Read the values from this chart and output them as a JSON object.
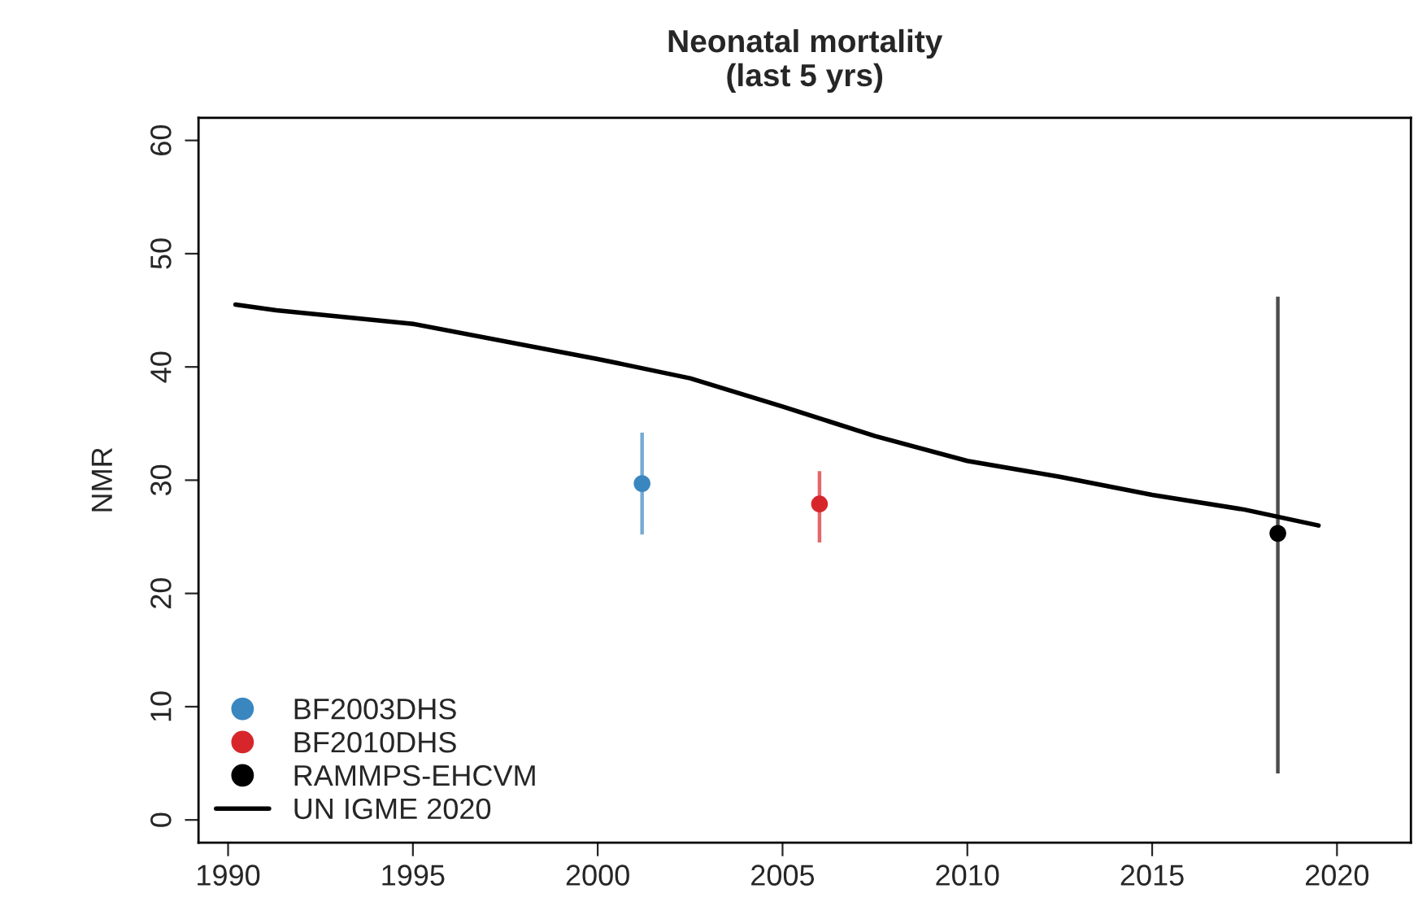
{
  "chart_data": {
    "type": "scatter",
    "title": "Neonatal mortality\n(last 5 yrs)",
    "ylabel": "NMR",
    "xlim": [
      1989.2,
      2022
    ],
    "xticks": [
      1990,
      1995,
      2000,
      2005,
      2010,
      2015,
      2020
    ],
    "ylim": [
      -2,
      62
    ],
    "yticks": [
      0,
      10,
      20,
      30,
      40,
      50,
      60
    ],
    "grid": false,
    "legend": "bottom left",
    "marker": "circle",
    "series": [
      {
        "name": "BF2003DHS",
        "color": "#3a87c0",
        "x": [
          2001.2
        ],
        "values": [
          29.7
        ],
        "errors": [
          [
            25.2,
            34.2
          ]
        ]
      },
      {
        "name": "BF2010DHS",
        "color": "#d7262b",
        "x": [
          2006.0
        ],
        "values": [
          27.9
        ],
        "errors": [
          [
            24.5,
            30.8
          ]
        ]
      },
      {
        "name": "RAMMPS-EHCVM",
        "color": "#000000",
        "x": [
          2018.4
        ],
        "values": [
          25.3
        ],
        "errors": [
          [
            4.1,
            46.2
          ]
        ]
      },
      {
        "name": "UN IGME 2020",
        "type": "line",
        "color": "#000000",
        "marker": "none",
        "x": [
          1990.2,
          1991.3,
          1995,
          2000,
          2002.5,
          2005,
          2007.5,
          2010,
          2012.5,
          2015,
          2017.5,
          2019.5
        ],
        "values": [
          45.5,
          45.0,
          43.8,
          40.7,
          39.0,
          36.5,
          33.9,
          31.7,
          30.3,
          28.7,
          27.4,
          26.0
        ]
      }
    ]
  }
}
